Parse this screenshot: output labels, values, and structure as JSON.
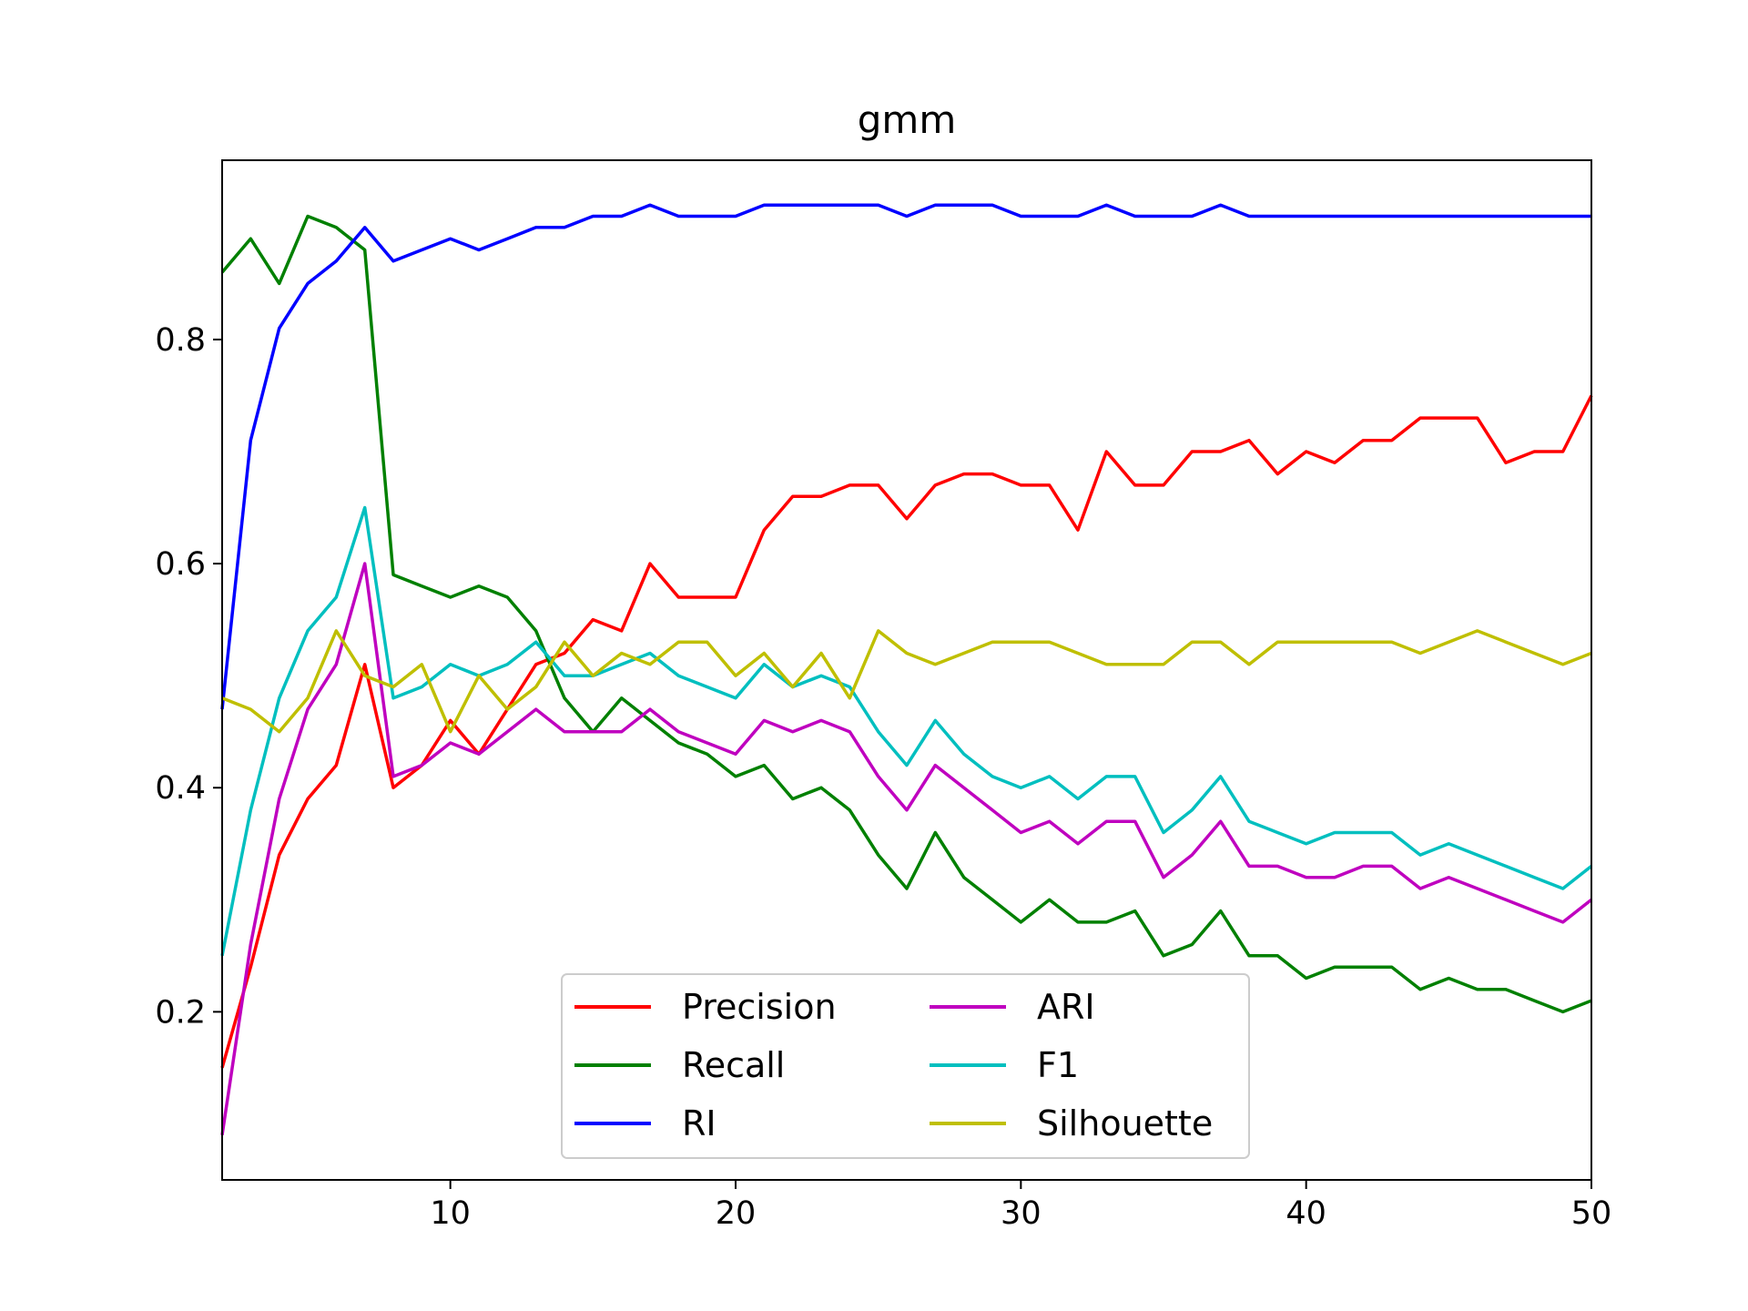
{
  "chart_data": {
    "type": "line",
    "title": "gmm",
    "xlabel": "",
    "ylabel": "",
    "xlim": [
      2,
      50
    ],
    "ylim": [
      0.05,
      0.96
    ],
    "xticks": [
      10,
      20,
      30,
      40,
      50
    ],
    "xtick_labels": [
      "10",
      "20",
      "30",
      "40",
      "50"
    ],
    "yticks": [
      0.2,
      0.4,
      0.6,
      0.8
    ],
    "ytick_labels": [
      "0.2",
      "0.4",
      "0.6",
      "0.8"
    ],
    "grid": false,
    "legend": {
      "placement": "lower-center",
      "columns": 2
    },
    "x": [
      2,
      3,
      4,
      5,
      6,
      7,
      8,
      9,
      10,
      11,
      12,
      13,
      14,
      15,
      16,
      17,
      18,
      19,
      20,
      21,
      22,
      23,
      24,
      25,
      26,
      27,
      28,
      29,
      30,
      31,
      32,
      33,
      34,
      35,
      36,
      37,
      38,
      39,
      40,
      41,
      42,
      43,
      44,
      45,
      46,
      47,
      48,
      49,
      50
    ],
    "series": [
      {
        "name": "Precision",
        "color": "#ff0000",
        "values": [
          0.15,
          0.24,
          0.34,
          0.39,
          0.42,
          0.51,
          0.4,
          0.42,
          0.46,
          0.43,
          0.47,
          0.51,
          0.52,
          0.55,
          0.54,
          0.6,
          0.57,
          0.57,
          0.57,
          0.63,
          0.66,
          0.66,
          0.67,
          0.67,
          0.64,
          0.67,
          0.68,
          0.68,
          0.67,
          0.67,
          0.63,
          0.7,
          0.67,
          0.67,
          0.7,
          0.7,
          0.71,
          0.68,
          0.7,
          0.69,
          0.71,
          0.71,
          0.73,
          0.73,
          0.73,
          0.69,
          0.7,
          0.7,
          0.75
        ]
      },
      {
        "name": "Recall",
        "color": "#008000",
        "values": [
          0.86,
          0.89,
          0.85,
          0.91,
          0.9,
          0.88,
          0.59,
          0.58,
          0.57,
          0.58,
          0.57,
          0.54,
          0.48,
          0.45,
          0.48,
          0.46,
          0.44,
          0.43,
          0.41,
          0.42,
          0.39,
          0.4,
          0.38,
          0.34,
          0.31,
          0.36,
          0.32,
          0.3,
          0.28,
          0.3,
          0.28,
          0.28,
          0.29,
          0.25,
          0.26,
          0.29,
          0.25,
          0.25,
          0.23,
          0.24,
          0.24,
          0.24,
          0.22,
          0.23,
          0.22,
          0.22,
          0.21,
          0.2,
          0.21
        ]
      },
      {
        "name": "RI",
        "color": "#0000ff",
        "values": [
          0.47,
          0.71,
          0.81,
          0.85,
          0.87,
          0.9,
          0.87,
          0.88,
          0.89,
          0.88,
          0.89,
          0.9,
          0.9,
          0.91,
          0.91,
          0.92,
          0.91,
          0.91,
          0.91,
          0.92,
          0.92,
          0.92,
          0.92,
          0.92,
          0.91,
          0.92,
          0.92,
          0.92,
          0.91,
          0.91,
          0.91,
          0.92,
          0.91,
          0.91,
          0.91,
          0.92,
          0.91,
          0.91,
          0.91,
          0.91,
          0.91,
          0.91,
          0.91,
          0.91,
          0.91,
          0.91,
          0.91,
          0.91,
          0.91
        ]
      },
      {
        "name": "ARI",
        "color": "#bf00bf",
        "values": [
          0.09,
          0.26,
          0.39,
          0.47,
          0.51,
          0.6,
          0.41,
          0.42,
          0.44,
          0.43,
          0.45,
          0.47,
          0.45,
          0.45,
          0.45,
          0.47,
          0.45,
          0.44,
          0.43,
          0.46,
          0.45,
          0.46,
          0.45,
          0.41,
          0.38,
          0.42,
          0.4,
          0.38,
          0.36,
          0.37,
          0.35,
          0.37,
          0.37,
          0.32,
          0.34,
          0.37,
          0.33,
          0.33,
          0.32,
          0.32,
          0.33,
          0.33,
          0.31,
          0.32,
          0.31,
          0.3,
          0.29,
          0.28,
          0.3
        ]
      },
      {
        "name": "F1",
        "color": "#00bfbf",
        "values": [
          0.25,
          0.38,
          0.48,
          0.54,
          0.57,
          0.65,
          0.48,
          0.49,
          0.51,
          0.5,
          0.51,
          0.53,
          0.5,
          0.5,
          0.51,
          0.52,
          0.5,
          0.49,
          0.48,
          0.51,
          0.49,
          0.5,
          0.49,
          0.45,
          0.42,
          0.46,
          0.43,
          0.41,
          0.4,
          0.41,
          0.39,
          0.41,
          0.41,
          0.36,
          0.38,
          0.41,
          0.37,
          0.36,
          0.35,
          0.36,
          0.36,
          0.36,
          0.34,
          0.35,
          0.34,
          0.33,
          0.32,
          0.31,
          0.33
        ]
      },
      {
        "name": "Silhouette",
        "color": "#bfbf00",
        "values": [
          0.48,
          0.47,
          0.45,
          0.48,
          0.54,
          0.5,
          0.49,
          0.51,
          0.45,
          0.5,
          0.47,
          0.49,
          0.53,
          0.5,
          0.52,
          0.51,
          0.53,
          0.53,
          0.5,
          0.52,
          0.49,
          0.52,
          0.48,
          0.54,
          0.52,
          0.51,
          0.52,
          0.53,
          0.53,
          0.53,
          0.52,
          0.51,
          0.51,
          0.51,
          0.53,
          0.53,
          0.51,
          0.53,
          0.53,
          0.53,
          0.53,
          0.53,
          0.52,
          0.53,
          0.54,
          0.53,
          0.52,
          0.51,
          0.52
        ]
      }
    ]
  }
}
